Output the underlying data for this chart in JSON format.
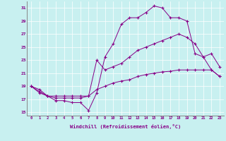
{
  "xlabel": "Windchill (Refroidissement éolien,°C)",
  "background_color": "#c8f0f0",
  "line_color": "#880088",
  "grid_color": "#aadddd",
  "xlim": [
    -0.5,
    23.5
  ],
  "ylim": [
    14.5,
    32
  ],
  "xticks": [
    0,
    1,
    2,
    3,
    4,
    5,
    6,
    7,
    8,
    9,
    10,
    11,
    12,
    13,
    14,
    15,
    16,
    17,
    18,
    19,
    20,
    21,
    22,
    23
  ],
  "yticks": [
    15,
    17,
    19,
    21,
    23,
    25,
    27,
    29,
    31
  ],
  "curve1_x": [
    0,
    1,
    2,
    3,
    4,
    5,
    6,
    7,
    8,
    9,
    10,
    11,
    12,
    13,
    14,
    15,
    16,
    17,
    18,
    19,
    20,
    21,
    22,
    23
  ],
  "curve1_y": [
    19,
    18,
    17.5,
    16.8,
    16.8,
    16.5,
    16.5,
    15.3,
    18,
    23.5,
    25.5,
    28.5,
    29.5,
    29.5,
    30.3,
    31.3,
    31,
    29.5,
    29.5,
    29,
    24,
    23.5,
    24,
    22
  ],
  "curve2_x": [
    0,
    1,
    2,
    3,
    4,
    5,
    6,
    7,
    8,
    9,
    10,
    11,
    12,
    13,
    14,
    15,
    16,
    17,
    18,
    19,
    20,
    21,
    22,
    23
  ],
  "curve2_y": [
    19,
    18.2,
    17.5,
    17.2,
    17.2,
    17.2,
    17.2,
    17.5,
    23,
    21.5,
    22,
    22.5,
    23.5,
    24.5,
    25,
    25.5,
    26,
    26.5,
    27,
    26.5,
    25.5,
    23.5,
    21.5,
    20.5
  ],
  "curve3_x": [
    0,
    1,
    2,
    3,
    4,
    5,
    6,
    7,
    8,
    9,
    10,
    11,
    12,
    13,
    14,
    15,
    16,
    17,
    18,
    19,
    20,
    21,
    22,
    23
  ],
  "curve3_y": [
    19,
    18.5,
    17.5,
    17.5,
    17.5,
    17.5,
    17.5,
    17.5,
    18.5,
    19,
    19.5,
    19.8,
    20,
    20.5,
    20.8,
    21,
    21.2,
    21.3,
    21.5,
    21.5,
    21.5,
    21.5,
    21.5,
    20.5
  ]
}
